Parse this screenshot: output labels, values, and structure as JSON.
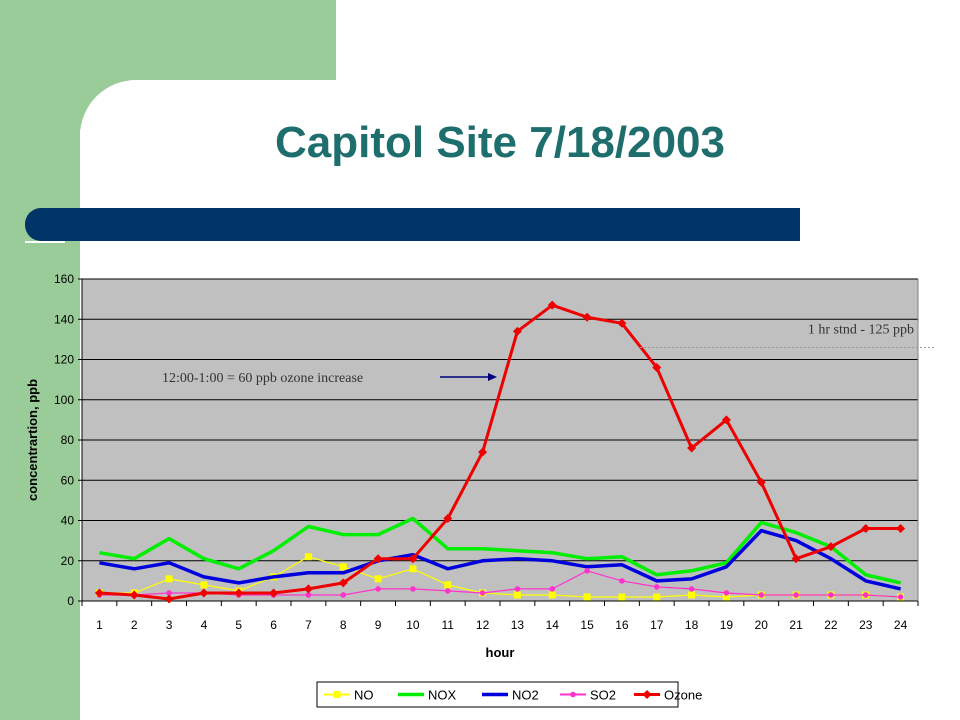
{
  "slide": {
    "title": "Capitol Site 7/18/2003",
    "colors": {
      "side_band": "#99cc99",
      "title_text": "#1f6e6e",
      "title_bar": "#003366",
      "plot_bg": "#c0c0c0"
    }
  },
  "chart_data": {
    "type": "line",
    "title": "",
    "xlabel": "hour",
    "ylabel": "concentrartion, ppb",
    "x": [
      1,
      2,
      3,
      4,
      5,
      6,
      7,
      8,
      9,
      10,
      11,
      12,
      13,
      14,
      15,
      16,
      17,
      18,
      19,
      20,
      21,
      22,
      23,
      24
    ],
    "ylim": [
      0,
      160
    ],
    "yticks": [
      0,
      20,
      40,
      60,
      80,
      100,
      120,
      140,
      160
    ],
    "grid": "horizontal",
    "legend_position": "bottom",
    "series": [
      {
        "name": "NO",
        "color": "#ffff00",
        "marker": "square",
        "width": 1.2,
        "values": [
          4,
          4,
          11,
          8,
          5,
          12,
          22,
          17,
          11,
          16,
          8,
          4,
          3,
          3,
          2,
          2,
          2,
          3,
          2,
          3,
          3,
          3,
          3,
          2
        ]
      },
      {
        "name": "NOX",
        "color": "#00ee00",
        "marker": "none",
        "width": 3.5,
        "values": [
          24,
          21,
          31,
          21,
          16,
          25,
          37,
          33,
          33,
          41,
          26,
          26,
          25,
          24,
          21,
          22,
          13,
          15,
          19,
          39,
          34,
          27,
          13,
          9
        ]
      },
      {
        "name": "NO2",
        "color": "#0000dd",
        "marker": "none",
        "width": 3.5,
        "values": [
          19,
          16,
          19,
          12,
          9,
          12,
          14,
          14,
          20,
          23,
          16,
          20,
          21,
          20,
          17,
          18,
          10,
          11,
          17,
          35,
          30,
          21,
          10,
          6
        ]
      },
      {
        "name": "SO2",
        "color": "#ff33cc",
        "marker": "circle",
        "width": 1.2,
        "values": [
          3,
          3,
          4,
          4,
          3,
          3,
          3,
          3,
          6,
          6,
          5,
          4,
          6,
          6,
          15,
          10,
          7,
          6,
          4,
          3,
          3,
          3,
          3,
          2
        ]
      },
      {
        "name": "Ozone",
        "color": "#ee0000",
        "marker": "diamond",
        "width": 3,
        "values": [
          4,
          3,
          1,
          4,
          4,
          4,
          6,
          9,
          21,
          21,
          41,
          74,
          134,
          147,
          141,
          138,
          116,
          76,
          90,
          59,
          21,
          27,
          36,
          36
        ]
      }
    ],
    "annotations": {
      "standard_label": "1 hr stnd - 125 ppb",
      "standard_value": 125,
      "increase_label": "12:00-1:00 = 60 ppb ozone increase"
    }
  }
}
